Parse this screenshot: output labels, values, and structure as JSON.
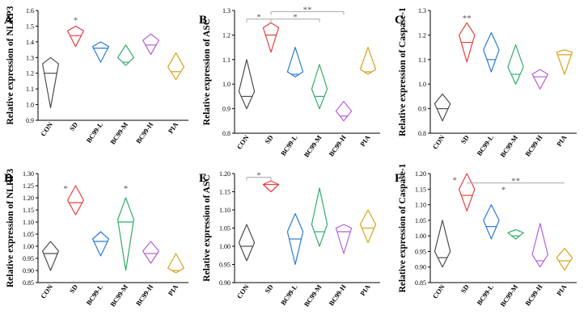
{
  "colors": {
    "CON": "#4d4d4d",
    "SD": "#e8403f",
    "BC99-L": "#2b7bd6",
    "BC99-M": "#33ad68",
    "BC99-H": "#b75fd6",
    "PIA": "#d9a21b",
    "axis": "#000000",
    "bracket": "#aaaaaa",
    "star": "#555555"
  },
  "chart_data": [
    {
      "type": "violin",
      "panel": "A",
      "ylabel": "Relative expression of NLRP3",
      "categories": [
        "CON",
        "SD",
        "BC99-L",
        "BC99-M",
        "BC99-H",
        "PIA"
      ],
      "ylim": [
        0.9,
        1.6
      ],
      "yticks": [
        "0.9",
        "1.0",
        "1.1",
        "1.2",
        "1.3",
        "1.4",
        "1.5",
        "1.6"
      ],
      "series": [
        {
          "name": "CON",
          "min": 0.98,
          "max": 1.3,
          "median": 1.2,
          "widest": 1.26
        },
        {
          "name": "SD",
          "min": 1.37,
          "max": 1.5,
          "median": 1.44,
          "widest": 1.47
        },
        {
          "name": "BC99-L",
          "min": 1.27,
          "max": 1.4,
          "median": 1.36,
          "widest": 1.37
        },
        {
          "name": "BC99-M",
          "min": 1.25,
          "max": 1.38,
          "median": 1.27,
          "widest": 1.3
        },
        {
          "name": "BC99-H",
          "min": 1.32,
          "max": 1.45,
          "median": 1.38,
          "widest": 1.41
        },
        {
          "name": "PIA",
          "min": 1.16,
          "max": 1.33,
          "median": 1.21,
          "widest": 1.24
        }
      ],
      "annotations": [
        {
          "label": "*",
          "category": "SD",
          "y": 1.54
        }
      ]
    },
    {
      "type": "violin",
      "panel": "B",
      "ylabel": "Relative expression of  ASC",
      "categories": [
        "CON",
        "SD",
        "BC99-L",
        "BC99-M",
        "BC99-H",
        "PIA"
      ],
      "ylim": [
        0.8,
        1.3
      ],
      "yticks": [
        "0.8",
        "0.9",
        "1.0",
        "1.1",
        "1.2",
        "1.3"
      ],
      "series": [
        {
          "name": "CON",
          "min": 0.9,
          "max": 1.1,
          "median": 0.95,
          "widest": 0.97
        },
        {
          "name": "SD",
          "min": 1.13,
          "max": 1.25,
          "median": 1.2,
          "widest": 1.23
        },
        {
          "name": "BC99-L",
          "min": 1.03,
          "max": 1.15,
          "median": 1.04,
          "widest": 1.05
        },
        {
          "name": "BC99-M",
          "min": 0.9,
          "max": 1.08,
          "median": 0.95,
          "widest": 0.98
        },
        {
          "name": "BC99-H",
          "min": 0.85,
          "max": 0.93,
          "median": 0.87,
          "widest": 0.89
        },
        {
          "name": "PIA",
          "min": 1.04,
          "max": 1.15,
          "median": 1.05,
          "widest": 1.06
        }
      ],
      "brackets": [
        {
          "from": "CON",
          "to": "SD",
          "y": 1.265,
          "label": "*"
        },
        {
          "from": "SD",
          "to": "BC99-M",
          "y": 1.265,
          "label": "*"
        },
        {
          "from": "SD",
          "to": "BC99-H",
          "y": 1.295,
          "label": "**"
        }
      ]
    },
    {
      "type": "violin",
      "panel": "C",
      "ylabel": "Relative expression of Caspase-1",
      "categories": [
        "CON",
        "SD",
        "BC99-L",
        "BC99-M",
        "BC99-H",
        "PIA"
      ],
      "ylim": [
        0.8,
        1.3
      ],
      "yticks": [
        "0.8",
        "0.9",
        "1.0",
        "1.1",
        "1.2",
        "1.3"
      ],
      "series": [
        {
          "name": "CON",
          "min": 0.85,
          "max": 0.96,
          "median": 0.9,
          "widest": 0.92
        },
        {
          "name": "SD",
          "min": 1.09,
          "max": 1.25,
          "median": 1.17,
          "widest": 1.2
        },
        {
          "name": "BC99-L",
          "min": 1.05,
          "max": 1.21,
          "median": 1.1,
          "widest": 1.14
        },
        {
          "name": "BC99-M",
          "min": 1.0,
          "max": 1.16,
          "median": 1.04,
          "widest": 1.07
        },
        {
          "name": "BC99-H",
          "min": 0.98,
          "max": 1.06,
          "median": 1.03,
          "widest": 1.04
        },
        {
          "name": "PIA",
          "min": 1.04,
          "max": 1.14,
          "median": 1.12,
          "widest": 1.13
        }
      ],
      "annotations": [
        {
          "label": "**",
          "category": "SD",
          "y": 1.27
        }
      ]
    },
    {
      "type": "violin",
      "panel": "D",
      "ylabel": "Relative expression of NLRP3",
      "categories": [
        "CON",
        "SD",
        "BC99-L",
        "BC99-M",
        "BC99-H",
        "PIA"
      ],
      "ylim": [
        0.85,
        1.3
      ],
      "yticks": [
        "0.85",
        "0.90",
        "0.95",
        "1.00",
        "1.05",
        "1.10",
        "1.15",
        "1.20",
        "1.25",
        "1.30"
      ],
      "series": [
        {
          "name": "CON",
          "min": 0.9,
          "max": 1.02,
          "median": 0.97,
          "widest": 0.98
        },
        {
          "name": "SD",
          "min": 1.13,
          "max": 1.25,
          "median": 1.18,
          "widest": 1.19
        },
        {
          "name": "BC99-L",
          "min": 0.96,
          "max": 1.06,
          "median": 1.02,
          "widest": 1.03
        },
        {
          "name": "BC99-M",
          "min": 0.9,
          "max": 1.2,
          "median": 1.1,
          "widest": 1.11
        },
        {
          "name": "BC99-H",
          "min": 0.93,
          "max": 1.02,
          "median": 0.97,
          "widest": 0.98
        },
        {
          "name": "PIA",
          "min": 0.89,
          "max": 0.97,
          "median": 0.9,
          "widest": 0.91
        }
      ],
      "annotations": [
        {
          "label": "*",
          "category": "CON",
          "y": 1.24,
          "offset": 0.6
        },
        {
          "label": "*",
          "category": "BC99-M",
          "y": 1.24
        }
      ]
    },
    {
      "type": "violin",
      "panel": "E",
      "ylabel": "Relative expression of ASC",
      "categories": [
        "CON",
        "SD",
        "BC99-L",
        "BC99-M",
        "BC99-H",
        "PIA"
      ],
      "ylim": [
        0.9,
        1.2
      ],
      "yticks": [
        "0.90",
        "0.95",
        "1.00",
        "1.05",
        "1.10",
        "1.15",
        "1.20"
      ],
      "series": [
        {
          "name": "CON",
          "min": 0.96,
          "max": 1.06,
          "median": 1.0,
          "widest": 1.01
        },
        {
          "name": "SD",
          "min": 1.15,
          "max": 1.18,
          "median": 1.17,
          "widest": 1.17
        },
        {
          "name": "BC99-L",
          "min": 0.95,
          "max": 1.09,
          "median": 1.02,
          "widest": 1.04
        },
        {
          "name": "BC99-M",
          "min": 1.0,
          "max": 1.16,
          "median": 1.04,
          "widest": 1.06
        },
        {
          "name": "BC99-H",
          "min": 0.98,
          "max": 1.06,
          "median": 1.04,
          "widest": 1.05
        },
        {
          "name": "PIA",
          "min": 1.01,
          "max": 1.1,
          "median": 1.05,
          "widest": 1.06
        }
      ],
      "brackets": [
        {
          "from": "CON",
          "to": "SD",
          "y": 1.19,
          "label": "*"
        }
      ]
    },
    {
      "type": "violin",
      "panel": "F",
      "ylabel": "Relative expression of Caspase-1",
      "categories": [
        "CON",
        "SD",
        "BC99-L",
        "BC99-M",
        "BC99-H",
        "PIA"
      ],
      "ylim": [
        0.85,
        1.2
      ],
      "yticks": [
        "0.85",
        "0.90",
        "0.95",
        "1.00",
        "1.05",
        "1.10",
        "1.15",
        "1.20"
      ],
      "series": [
        {
          "name": "CON",
          "min": 0.9,
          "max": 1.05,
          "median": 0.93,
          "widest": 0.95
        },
        {
          "name": "SD",
          "min": 1.08,
          "max": 1.2,
          "median": 1.13,
          "widest": 1.15
        },
        {
          "name": "BC99-L",
          "min": 0.99,
          "max": 1.1,
          "median": 1.03,
          "widest": 1.05
        },
        {
          "name": "BC99-M",
          "min": 0.99,
          "max": 1.02,
          "median": 1.0,
          "widest": 1.01
        },
        {
          "name": "BC99-H",
          "min": 0.9,
          "max": 1.04,
          "median": 0.92,
          "widest": 0.94
        },
        {
          "name": "PIA",
          "min": 0.89,
          "max": 0.96,
          "median": 0.92,
          "widest": 0.93
        }
      ],
      "annotations": [
        {
          "label": "*",
          "category": "CON",
          "y": 1.18,
          "offset": 0.5
        },
        {
          "label": "*",
          "category": "BC99-L",
          "y": 1.15,
          "offset": 0.5
        }
      ],
      "brackets": [
        {
          "from": "SD",
          "to": "PIA",
          "y": 1.17,
          "label": "**",
          "noTicks": true
        }
      ]
    }
  ]
}
